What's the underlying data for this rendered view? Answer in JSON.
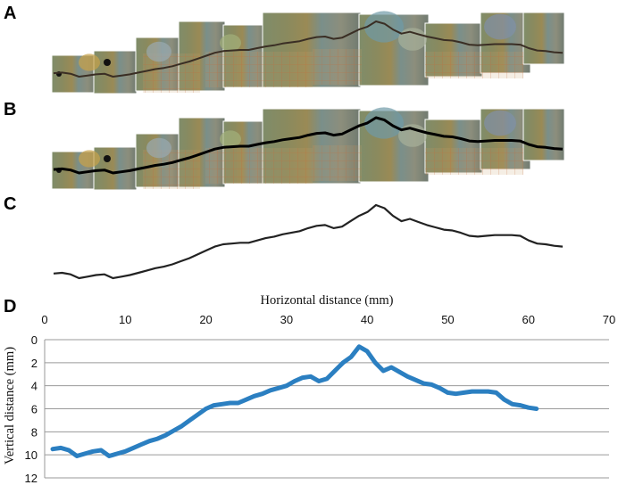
{
  "panels": {
    "a": {
      "letter": "A"
    },
    "b": {
      "letter": "B"
    },
    "c": {
      "letter": "C"
    },
    "d": {
      "letter": "D"
    }
  },
  "colors": {
    "profile_line": "#2b7fc1",
    "trace_c": "#222222",
    "grid": "#9a9a9a"
  },
  "chart_data": {
    "type": "line",
    "title": "",
    "xlabel": "Horizontal distance (mm)",
    "ylabel": "Vertical distance (mm)",
    "xlim": [
      0,
      70
    ],
    "ylim": [
      0,
      12
    ],
    "y_inverted": true,
    "x_axis_position": "top",
    "grid": "horizontal",
    "xticks": [
      "0",
      "10",
      "20",
      "30",
      "40",
      "50",
      "60",
      "70"
    ],
    "yticks": [
      "0",
      "2",
      "4",
      "6",
      "8",
      "10",
      "12"
    ],
    "series": [
      {
        "x": [
          1,
          2,
          3,
          4,
          5,
          6,
          7,
          8,
          9,
          10,
          11,
          12,
          13,
          14,
          15,
          16,
          17,
          18,
          19,
          20,
          21,
          22,
          23,
          24,
          25,
          26,
          27,
          28,
          29,
          30,
          31,
          32,
          33,
          34,
          35,
          36,
          37,
          38,
          39,
          40,
          41,
          42,
          43,
          44,
          45,
          46,
          47,
          48,
          49,
          50,
          51,
          52,
          53,
          54,
          55,
          56,
          57,
          58,
          59,
          60,
          61
        ],
        "y": [
          9.5,
          9.4,
          9.6,
          10.1,
          9.9,
          9.7,
          9.6,
          10.1,
          9.9,
          9.7,
          9.4,
          9.1,
          8.8,
          8.6,
          8.3,
          7.9,
          7.5,
          7.0,
          6.5,
          6.0,
          5.7,
          5.6,
          5.5,
          5.5,
          5.2,
          4.9,
          4.7,
          4.4,
          4.2,
          4.0,
          3.6,
          3.3,
          3.2,
          3.6,
          3.4,
          2.7,
          2.0,
          1.5,
          0.6,
          1.0,
          2.0,
          2.7,
          2.4,
          2.8,
          3.2,
          3.5,
          3.8,
          3.9,
          4.2,
          4.6,
          4.7,
          4.6,
          4.5,
          4.5,
          4.5,
          4.6,
          5.2,
          5.6,
          5.7,
          5.9,
          6.0
        ]
      }
    ]
  }
}
